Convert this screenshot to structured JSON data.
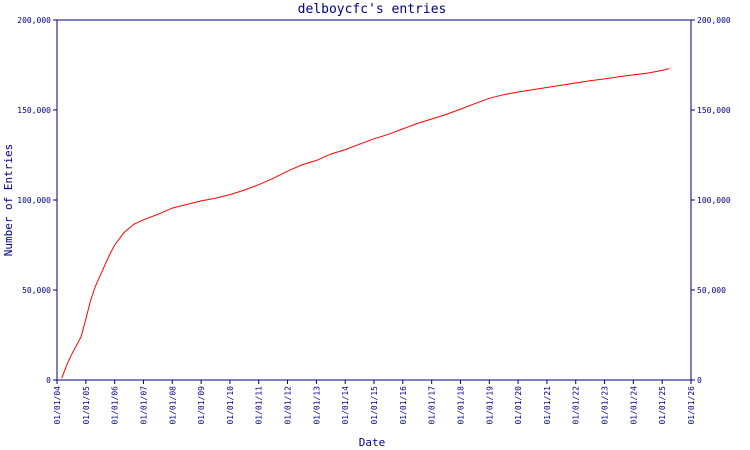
{
  "chart_data": {
    "type": "line",
    "title": "delboycfc's entries",
    "xlabel": "Date",
    "ylabel": "Number of Entries",
    "ylim": [
      0,
      200000
    ],
    "xlim": [
      "2004-01-01",
      "2026-01-01"
    ],
    "y_ticks": [
      0,
      50000,
      100000,
      150000,
      200000
    ],
    "y_tick_labels": [
      "0",
      "50,000",
      "100,000",
      "150,000",
      "200,000"
    ],
    "x_ticks": [
      "2004-01-01",
      "2005-01-01",
      "2006-01-01",
      "2007-01-01",
      "2008-01-01",
      "2009-01-01",
      "2010-01-01",
      "2011-01-01",
      "2012-01-01",
      "2013-01-01",
      "2014-01-01",
      "2015-01-01",
      "2016-01-01",
      "2017-01-01",
      "2018-01-01",
      "2019-01-01",
      "2020-01-01",
      "2021-01-01",
      "2022-01-01",
      "2023-01-01",
      "2024-01-01",
      "2025-01-01",
      "2026-01-01"
    ],
    "x_tick_labels": [
      "01/01/04",
      "01/01/05",
      "01/01/06",
      "01/01/07",
      "01/01/08",
      "01/01/09",
      "01/01/10",
      "01/01/11",
      "01/01/12",
      "01/01/13",
      "01/01/14",
      "01/01/15",
      "01/01/16",
      "01/01/17",
      "01/01/18",
      "01/01/19",
      "01/01/20",
      "01/01/21",
      "01/01/22",
      "01/01/23",
      "01/01/24",
      "01/01/25",
      "01/01/26"
    ],
    "grid": false,
    "line_color": "#ff0000",
    "axis_color": "#000080",
    "series": [
      {
        "x": [
          "2004-03-01",
          "2004-05-01",
          "2004-07-01",
          "2004-09-01",
          "2004-11-01",
          "2005-01-01",
          "2005-03-01",
          "2005-05-01",
          "2005-07-01",
          "2005-09-01",
          "2005-11-01",
          "2006-01-01",
          "2006-05-01",
          "2006-09-01",
          "2007-01-01",
          "2007-07-01",
          "2008-01-01",
          "2008-07-01",
          "2009-01-01",
          "2009-07-01",
          "2010-01-01",
          "2010-07-01",
          "2011-01-01",
          "2011-07-01",
          "2012-01-01",
          "2012-07-01",
          "2013-01-01",
          "2013-07-01",
          "2014-01-01",
          "2014-07-01",
          "2015-01-01",
          "2015-07-01",
          "2016-01-01",
          "2016-07-01",
          "2017-01-01",
          "2017-07-01",
          "2018-01-01",
          "2018-07-01",
          "2019-01-01",
          "2019-07-01",
          "2020-01-01",
          "2020-07-01",
          "2021-01-01",
          "2021-07-01",
          "2022-01-01",
          "2022-07-01",
          "2023-01-01",
          "2023-07-01",
          "2024-01-01",
          "2024-07-01",
          "2025-01-01",
          "2025-04-01"
        ],
        "y": [
          1000,
          8000,
          14000,
          19000,
          24000,
          34000,
          44000,
          52000,
          58000,
          64000,
          70000,
          75000,
          82000,
          86500,
          89000,
          92000,
          95500,
          97500,
          99500,
          101000,
          103000,
          105500,
          108500,
          112000,
          116000,
          119500,
          122000,
          125500,
          128000,
          131000,
          134000,
          136500,
          139500,
          142500,
          145000,
          147500,
          150500,
          153500,
          156500,
          158500,
          160000,
          161200,
          162500,
          163700,
          165000,
          166200,
          167300,
          168500,
          169500,
          170500,
          172000,
          173000
        ]
      }
    ]
  }
}
